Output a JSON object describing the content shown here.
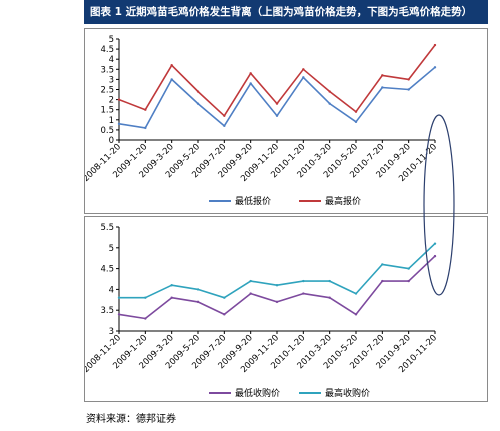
{
  "header": {
    "title": "图表 1 近期鸡苗毛鸡价格发生背离（上图为鸡苗价格走势，下图为毛鸡价格走势）"
  },
  "footer": {
    "source": "资料来源：德邦证券"
  },
  "chart_data": [
    {
      "type": "line",
      "title": "",
      "xlabel": "",
      "ylabel": "",
      "ylim": [
        0,
        5
      ],
      "yticks": [
        "0",
        "0.5",
        "1",
        "1.5",
        "2",
        "2.5",
        "3",
        "3.5",
        "4",
        "4.5",
        "5"
      ],
      "x": [
        "2008-11-20",
        "2009-1-20",
        "2009-3-20",
        "2009-5-20",
        "2009-7-20",
        "2009-9-20",
        "2009-11-20",
        "2010-1-20",
        "2010-3-20",
        "2010-5-20",
        "2010-7-20",
        "2010-9-20",
        "2010-11-20"
      ],
      "legend_position": "bottom",
      "grid": false,
      "series": [
        {
          "name": "最低报价",
          "color": "#4f7fc4",
          "values": [
            0.8,
            0.6,
            3.0,
            1.8,
            0.7,
            2.8,
            1.2,
            3.1,
            1.8,
            0.9,
            2.6,
            2.5,
            3.6
          ]
        },
        {
          "name": "最高报价",
          "color": "#c0393b",
          "values": [
            2.0,
            1.5,
            3.7,
            2.4,
            1.2,
            3.3,
            1.8,
            3.5,
            2.4,
            1.4,
            3.2,
            3.0,
            4.7
          ]
        }
      ]
    },
    {
      "type": "line",
      "title": "",
      "xlabel": "",
      "ylabel": "",
      "ylim": [
        3,
        5.5
      ],
      "yticks": [
        "3",
        "3.5",
        "4",
        "4.5",
        "5",
        "5.5"
      ],
      "x": [
        "2008-11-20",
        "2009-1-20",
        "2009-3-20",
        "2009-5-20",
        "2009-7-20",
        "2009-9-20",
        "2009-11-20",
        "2010-1-20",
        "2010-3-20",
        "2010-5-20",
        "2010-7-20",
        "2010-9-20",
        "2010-11-20"
      ],
      "legend_position": "bottom",
      "grid": false,
      "series": [
        {
          "name": "最低收购价",
          "color": "#7d4a9e",
          "values": [
            3.4,
            3.3,
            3.8,
            3.7,
            3.4,
            3.9,
            3.7,
            3.9,
            3.8,
            3.4,
            4.2,
            4.2,
            4.8
          ]
        },
        {
          "name": "最高收购价",
          "color": "#2fa3bd",
          "values": [
            3.8,
            3.8,
            4.1,
            4.0,
            3.8,
            4.2,
            4.1,
            4.2,
            4.2,
            3.9,
            4.6,
            4.5,
            5.1
          ]
        }
      ]
    }
  ]
}
